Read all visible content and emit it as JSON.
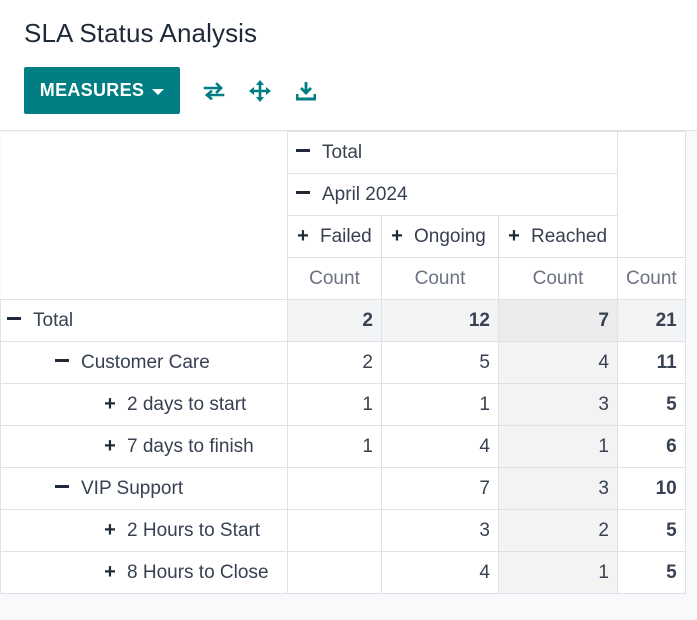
{
  "title": "SLA Status Analysis",
  "toolbar": {
    "measures_label": "MEASURES",
    "icons": [
      "flip-axis-icon",
      "expand-all-icon",
      "download-icon"
    ]
  },
  "colors": {
    "accent": "#017e84"
  },
  "pivot": {
    "col_total_label": "Total",
    "col_period_label": "April 2024",
    "col_groups": [
      "Failed",
      "Ongoing",
      "Reached"
    ],
    "measure_label": "Count",
    "rows": [
      {
        "label": "Total",
        "level": 0,
        "expanded": true,
        "values": [
          "2",
          "12",
          "7",
          "21"
        ]
      },
      {
        "label": "Customer Care",
        "level": 1,
        "expanded": true,
        "values": [
          "2",
          "5",
          "4",
          "11"
        ]
      },
      {
        "label": "2 days to start",
        "level": 2,
        "expanded": false,
        "values": [
          "1",
          "1",
          "3",
          "5"
        ]
      },
      {
        "label": "7 days to finish",
        "level": 2,
        "expanded": false,
        "values": [
          "1",
          "4",
          "1",
          "6"
        ]
      },
      {
        "label": "VIP Support",
        "level": 1,
        "expanded": true,
        "values": [
          "",
          "7",
          "3",
          "10"
        ]
      },
      {
        "label": "2 Hours to Start",
        "level": 2,
        "expanded": false,
        "values": [
          "",
          "3",
          "2",
          "5"
        ]
      },
      {
        "label": "8 Hours to Close",
        "level": 2,
        "expanded": false,
        "values": [
          "",
          "4",
          "1",
          "5"
        ]
      }
    ]
  }
}
